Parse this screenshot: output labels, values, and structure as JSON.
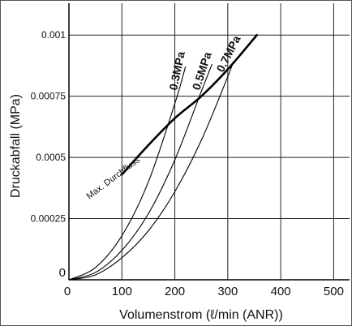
{
  "chart_data": {
    "type": "line",
    "xlabel": "Volumenstrom (ℓ/min (ANR))",
    "ylabel": "Druckabfall (MPa)",
    "xlim": [
      0,
      530
    ],
    "ylim": [
      0,
      0.00113
    ],
    "x_ticks": [
      0,
      100,
      200,
      300,
      400,
      500
    ],
    "x_tick_labels": [
      "0",
      "100",
      "200",
      "300",
      "400",
      "500"
    ],
    "y_ticks": [
      0,
      0.00025,
      0.0005,
      0.00075,
      0.001
    ],
    "y_tick_labels": [
      "0",
      "0.00025",
      "0.0005",
      "0.00075",
      "0.001"
    ],
    "grid": true,
    "series": [
      {
        "name": "0.3MPa",
        "x": [
          0,
          50,
          100,
          150,
          200,
          220
        ],
        "y": [
          0,
          5e-05,
          0.00018,
          0.0004,
          0.00072,
          0.00087
        ]
      },
      {
        "name": "0.5MPa",
        "x": [
          0,
          50,
          100,
          150,
          200,
          250,
          270
        ],
        "y": [
          0,
          3e-05,
          0.00012,
          0.00027,
          0.00049,
          0.00077,
          0.00088
        ]
      },
      {
        "name": "0.7MPa",
        "x": [
          0,
          50,
          100,
          150,
          200,
          250,
          300,
          310
        ],
        "y": [
          0,
          2e-05,
          9e-05,
          0.0002,
          0.00036,
          0.00057,
          0.00083,
          0.00089
        ]
      },
      {
        "name": "Max. Durchfluss",
        "x": [
          100,
          150,
          200,
          250,
          300,
          355
        ],
        "y": [
          0.00043,
          0.00055,
          0.00066,
          0.00075,
          0.00086,
          0.001
        ]
      }
    ]
  },
  "labels": {
    "p03": "0.3MPa",
    "p05": "0.5MPa",
    "p07": "0.7MPa",
    "maxflow": "Max. Durchfluss"
  }
}
